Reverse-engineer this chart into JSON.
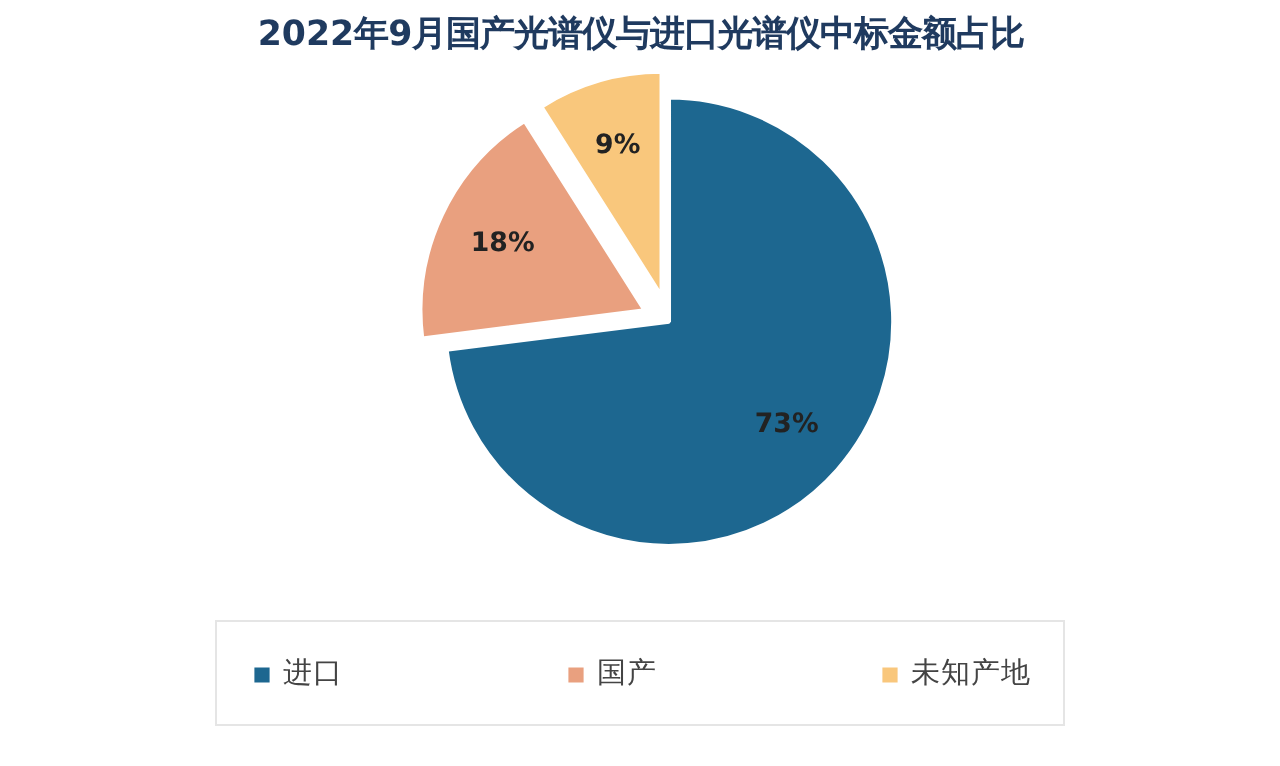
{
  "chart_data": {
    "type": "pie",
    "title": "2022年9月国产光谱仪与进口光谱仪中标金额占比",
    "categories": [
      "进口",
      "国产",
      "未知产地"
    ],
    "values": [
      73,
      18,
      9
    ],
    "colors": [
      "#1d6790",
      "#e9a07f",
      "#f9c77c"
    ],
    "value_labels": [
      "73%",
      "18%",
      "9%"
    ],
    "legend": "bottom"
  }
}
